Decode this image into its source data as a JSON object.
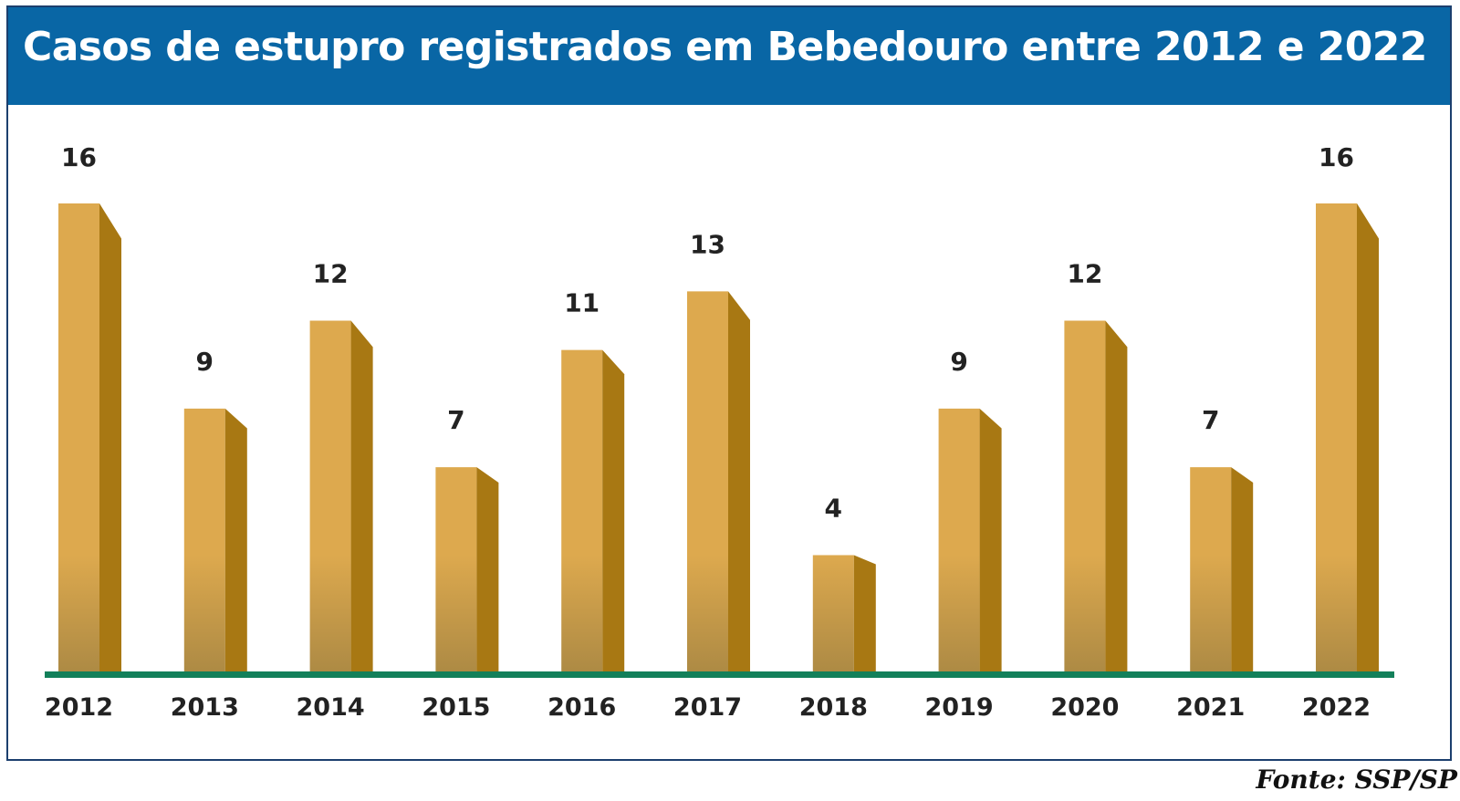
{
  "title": "Casos de estupro registrados em Bebedouro entre 2012 e 2022",
  "source": "Fonte: SSP/SP",
  "colors": {
    "header_bg": "#0966a5",
    "bar_front": "#dda94e",
    "bar_front_bottom": "#ad8a44",
    "bar_side": "#a87813",
    "baseline": "#13805a",
    "border": "#1c3f6e"
  },
  "chart_data": {
    "type": "bar",
    "title": "Casos de estupro registrados em Bebedouro entre 2012 e 2022",
    "categories": [
      "2012",
      "2013",
      "2014",
      "2015",
      "2016",
      "2017",
      "2018",
      "2019",
      "2020",
      "2021",
      "2022"
    ],
    "values": [
      16,
      9,
      12,
      7,
      11,
      13,
      4,
      9,
      12,
      7,
      16
    ],
    "data_labels": [
      "16",
      "9",
      "12",
      "7",
      "11",
      "13",
      "4",
      "9",
      "12",
      "7",
      "16"
    ],
    "xlabel": "",
    "ylabel": "",
    "ylim": [
      0,
      16
    ],
    "grid": false,
    "legend": "none"
  }
}
